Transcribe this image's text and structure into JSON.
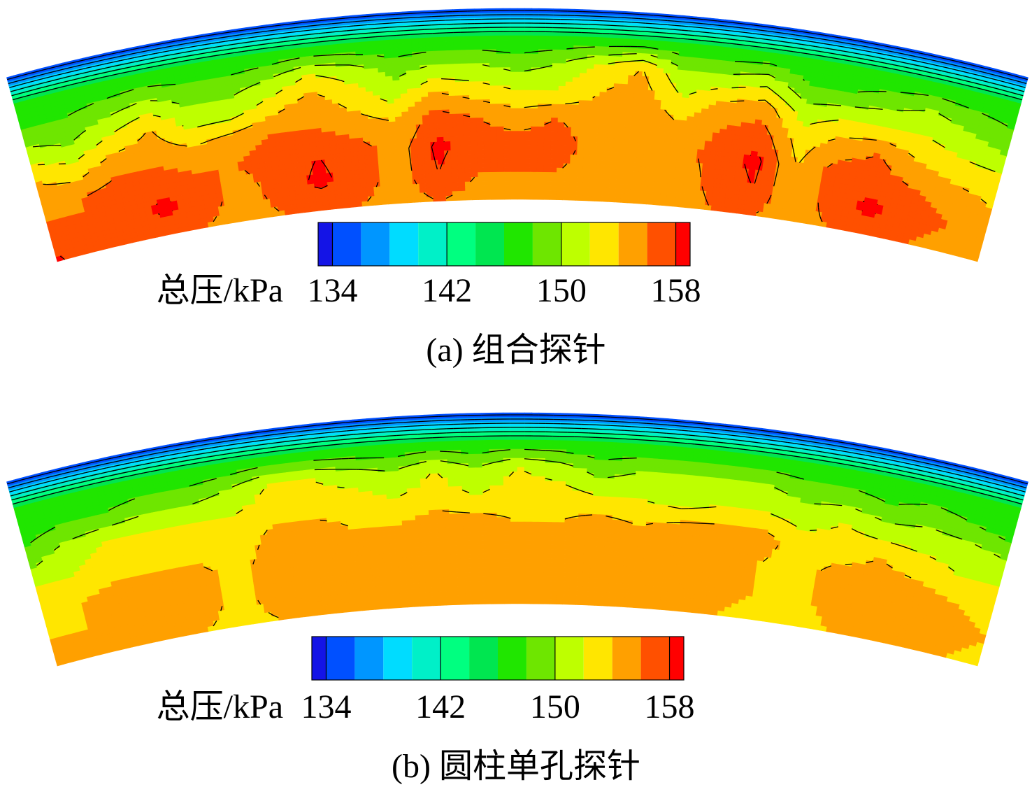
{
  "chart_data": [
    {
      "type": "contour",
      "title": "(a) 组合探针",
      "colorbar": {
        "label": "总压/kPa",
        "lim": [
          133,
          159
        ],
        "ticks": [
          134,
          142,
          150,
          158
        ]
      },
      "levels": [
        134,
        136,
        138,
        140,
        142,
        144,
        146,
        148,
        150,
        152,
        154,
        156,
        158
      ],
      "colors": [
        "#1414e6",
        "#0050ff",
        "#0096ff",
        "#00dcff",
        "#00f0c8",
        "#00ff80",
        "#00e650",
        "#20e600",
        "#6ee600",
        "#beff00",
        "#ffe600",
        "#ffa000",
        "#ff5000",
        "#ff0000"
      ],
      "z": [
        [
          133,
          133,
          133,
          133,
          133,
          133,
          133,
          133,
          133,
          133,
          133,
          133,
          133,
          133,
          133,
          133,
          133,
          133,
          133,
          133,
          133,
          133,
          133,
          133,
          133
        ],
        [
          146,
          146,
          146,
          146,
          146,
          146,
          146,
          146,
          146,
          146,
          146,
          146,
          146,
          146,
          146,
          146,
          146,
          146,
          146,
          146,
          146,
          146,
          146,
          146,
          146
        ],
        [
          148,
          148,
          149,
          150,
          149,
          149,
          150,
          152,
          151,
          149,
          150,
          150,
          149,
          150,
          152,
          154,
          150,
          150,
          151,
          148,
          148,
          149,
          150,
          149,
          148
        ],
        [
          151,
          150,
          152,
          154,
          151,
          151,
          153,
          155,
          153,
          151,
          154,
          153,
          152,
          152,
          154,
          155,
          152,
          154,
          155,
          151,
          152,
          152,
          152,
          151,
          150
        ],
        [
          154,
          153,
          155,
          155,
          154,
          155,
          156,
          156,
          155,
          154,
          157,
          156,
          155,
          156,
          155,
          156,
          154,
          156,
          157,
          153,
          155,
          156,
          154,
          153,
          153
        ],
        [
          155,
          156,
          157,
          157,
          156,
          156,
          157,
          158,
          157,
          155,
          158.5,
          157,
          157,
          157,
          155,
          155,
          155,
          157,
          158.5,
          154,
          157,
          157,
          156,
          155,
          154
        ],
        [
          157,
          156,
          157,
          158.5,
          157,
          155,
          157,
          158.5,
          157,
          155,
          158,
          156,
          156,
          156,
          155,
          155,
          154,
          157,
          158,
          154,
          157,
          158.5,
          157,
          156,
          155
        ],
        [
          158.5,
          156,
          157,
          157,
          156,
          155,
          156,
          156,
          156,
          155,
          156,
          155,
          155,
          155,
          155,
          155,
          154,
          156,
          156,
          155,
          156,
          157,
          156,
          155,
          154
        ]
      ]
    },
    {
      "type": "contour",
      "title": "(b) 圆柱单孔探针",
      "colorbar": {
        "label": "总压/kPa",
        "lim": [
          133,
          159
        ],
        "ticks": [
          134,
          142,
          150,
          158
        ]
      },
      "levels": [
        134,
        136,
        138,
        140,
        142,
        144,
        146,
        148,
        150,
        152,
        154,
        156,
        158
      ],
      "colors": [
        "#1414e6",
        "#0050ff",
        "#0096ff",
        "#00dcff",
        "#00f0c8",
        "#00ff80",
        "#00e650",
        "#20e600",
        "#6ee600",
        "#beff00",
        "#ffe600",
        "#ffa000",
        "#ff5000",
        "#ff0000"
      ],
      "z": [
        [
          133,
          133,
          133,
          133,
          133,
          133,
          133,
          133,
          133,
          133,
          133,
          133,
          133,
          133,
          133,
          133,
          133,
          133,
          133,
          133,
          133,
          133,
          133,
          133,
          133
        ],
        [
          146,
          146,
          146,
          146,
          146,
          146,
          146,
          146,
          146,
          146,
          146,
          146,
          146,
          146,
          146,
          146,
          146,
          146,
          146,
          146,
          146,
          146,
          146,
          146,
          146
        ],
        [
          147,
          148,
          148,
          149,
          149,
          150,
          152,
          152,
          151,
          150,
          152,
          150,
          152,
          151,
          149,
          150,
          150,
          150,
          150,
          149,
          149,
          148,
          149,
          148,
          147
        ],
        [
          149,
          151,
          152,
          152,
          152,
          152,
          153,
          153,
          153,
          152,
          153,
          152,
          153,
          153,
          152,
          152,
          151,
          152,
          152,
          151,
          152,
          151,
          151,
          151,
          150
        ],
        [
          152,
          152,
          153,
          153,
          153,
          152,
          155,
          155,
          154,
          154,
          155,
          155,
          154,
          154,
          155,
          154,
          155,
          155,
          155,
          153,
          153,
          154,
          153,
          152,
          152
        ],
        [
          153,
          154,
          155,
          155,
          155,
          153,
          156,
          156,
          155,
          155,
          156,
          155,
          155,
          155,
          155,
          155,
          155,
          155,
          154,
          153,
          155,
          155,
          155,
          154,
          153
        ],
        [
          154,
          154,
          155,
          156,
          155,
          153,
          156,
          155,
          155,
          155,
          155,
          155,
          155,
          155,
          155,
          155,
          155,
          155,
          154,
          153,
          155,
          155,
          155,
          155,
          154
        ],
        [
          154,
          154,
          154,
          155,
          154,
          153,
          154,
          154,
          154,
          154,
          154,
          154,
          154,
          154,
          154,
          154,
          154,
          154,
          153,
          152,
          154,
          154,
          154,
          154,
          153
        ]
      ]
    }
  ]
}
